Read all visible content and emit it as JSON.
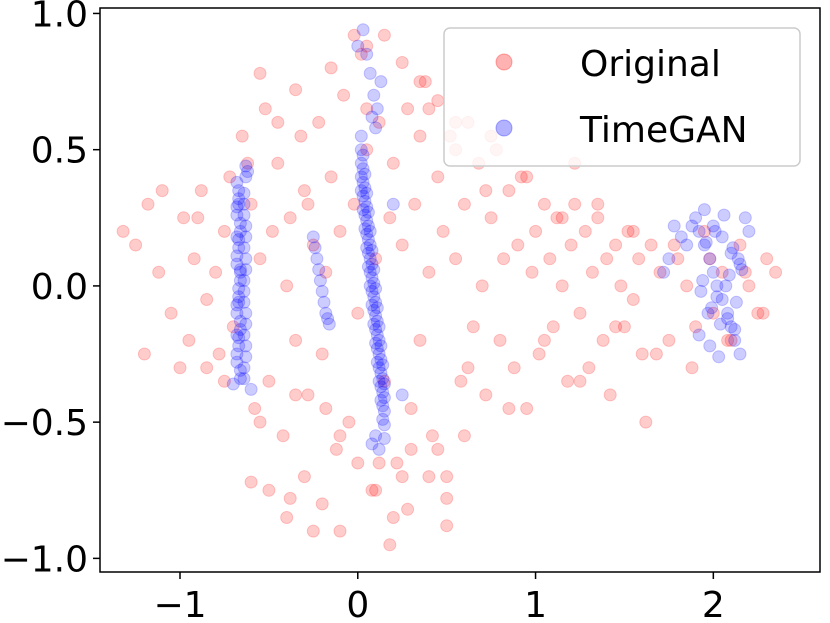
{
  "chart_data": {
    "type": "scatter",
    "title": "",
    "xlabel": "",
    "ylabel": "",
    "xlim": [
      -1.45,
      2.6
    ],
    "ylim": [
      -1.05,
      1.02
    ],
    "xticks": [
      -1,
      0,
      1,
      2
    ],
    "xtick_labels": [
      "−1",
      "0",
      "1",
      "2"
    ],
    "yticks": [
      1.0,
      0.5,
      0.0,
      -0.5,
      -1.0
    ],
    "ytick_labels": [
      "1.0",
      "0.5",
      "0.0",
      "−0.5",
      "−1.0"
    ],
    "grid": false,
    "legend_position": "top-right",
    "marker_alpha": 0.2,
    "series": [
      {
        "name": "Original",
        "color": "#ff0000",
        "x": [
          -1.32,
          -1.25,
          -1.18,
          -1.12,
          -1.05,
          -0.98,
          -0.95,
          -0.92,
          -0.88,
          -0.85,
          -0.8,
          -0.78,
          -0.75,
          -0.72,
          -0.7,
          -0.65,
          -0.6,
          -0.58,
          -0.55,
          -0.52,
          -0.5,
          -0.48,
          -0.45,
          -0.42,
          -0.4,
          -0.38,
          -0.35,
          -0.32,
          -0.3,
          -0.28,
          -0.25,
          -0.22,
          -0.2,
          -0.18,
          -0.15,
          -0.12,
          -0.1,
          -0.08,
          -0.05,
          -0.02,
          0.0,
          0.02,
          0.05,
          0.08,
          0.1,
          0.12,
          0.15,
          0.18,
          0.2,
          0.22,
          0.25,
          0.28,
          0.3,
          0.32,
          0.35,
          0.38,
          0.4,
          0.42,
          0.45,
          0.48,
          0.5,
          0.52,
          0.55,
          0.58,
          0.6,
          0.62,
          0.65,
          0.68,
          0.7,
          0.72,
          0.75,
          0.78,
          0.8,
          0.82,
          0.85,
          0.88,
          0.9,
          0.92,
          0.95,
          0.98,
          1.0,
          1.02,
          1.05,
          1.08,
          1.1,
          1.12,
          1.15,
          1.18,
          1.2,
          1.22,
          1.25,
          1.28,
          1.3,
          1.32,
          1.35,
          1.38,
          1.4,
          1.42,
          1.45,
          1.48,
          1.5,
          1.52,
          1.55,
          1.58,
          1.6,
          1.65,
          1.7,
          1.75,
          1.8,
          1.85,
          1.9,
          1.95,
          2.0,
          2.05,
          2.1,
          2.15,
          2.2,
          2.25,
          2.3,
          2.35,
          -1.2,
          -1.1,
          -1.0,
          -0.9,
          -0.85,
          -0.75,
          -0.62,
          -0.55,
          -0.45,
          -0.35,
          -0.28,
          -0.18,
          -0.1,
          0.05,
          0.12,
          0.25,
          0.35,
          0.45,
          0.55,
          0.62,
          0.72,
          0.85,
          0.95,
          1.05,
          1.15,
          1.25,
          1.35,
          1.45,
          1.55,
          1.68,
          1.78,
          1.88,
          1.98,
          2.08,
          2.18,
          2.28,
          -0.5,
          -0.4,
          -0.3,
          -0.2,
          -0.1,
          0.0,
          0.1,
          0.2,
          0.3,
          0.4,
          0.5,
          0.6,
          -0.55,
          -0.35,
          -0.15,
          0.05,
          0.25,
          0.45,
          0.15,
          0.28,
          0.4,
          -0.02,
          -0.38,
          0.5,
          0.35,
          0.55,
          0.75,
          -0.6,
          -0.25,
          0.18,
          1.62,
          1.22
        ],
        "y": [
          0.2,
          0.15,
          0.3,
          0.05,
          -0.1,
          0.25,
          -0.2,
          0.1,
          0.35,
          -0.3,
          0.05,
          -0.25,
          0.2,
          0.4,
          -0.15,
          0.55,
          0.3,
          -0.45,
          0.1,
          0.65,
          -0.35,
          0.2,
          0.45,
          -0.55,
          0.0,
          0.25,
          -0.2,
          0.55,
          0.35,
          -0.4,
          0.15,
          0.6,
          -0.25,
          0.05,
          0.4,
          -0.6,
          0.2,
          0.7,
          -0.5,
          0.3,
          -0.1,
          0.85,
          0.5,
          -0.75,
          0.1,
          0.6,
          -0.35,
          0.25,
          0.45,
          -0.65,
          0.15,
          0.65,
          -0.45,
          0.3,
          -0.2,
          0.75,
          0.05,
          -0.55,
          0.4,
          0.2,
          -0.7,
          0.55,
          0.1,
          -0.35,
          0.3,
          0.6,
          -0.15,
          0.45,
          0.0,
          -0.4,
          0.25,
          0.5,
          -0.2,
          0.1,
          0.35,
          -0.3,
          0.15,
          0.4,
          -0.45,
          0.05,
          0.2,
          -0.25,
          0.3,
          0.1,
          -0.15,
          0.25,
          0.0,
          -0.35,
          0.15,
          0.3,
          -0.1,
          0.2,
          -0.3,
          0.05,
          0.25,
          -0.2,
          0.1,
          -0.4,
          0.15,
          0.0,
          -0.15,
          0.2,
          -0.05,
          0.1,
          -0.25,
          0.15,
          0.05,
          -0.2,
          0.1,
          0.0,
          -0.15,
          0.2,
          -0.1,
          0.05,
          -0.2,
          0.15,
          0.0,
          -0.1,
          0.1,
          0.05,
          -0.25,
          0.35,
          -0.3,
          0.25,
          -0.05,
          -0.35,
          0.45,
          -0.5,
          0.6,
          -0.4,
          0.3,
          -0.45,
          -0.55,
          0.65,
          -0.65,
          -0.7,
          0.55,
          -0.6,
          0.5,
          -0.3,
          0.35,
          -0.45,
          0.4,
          -0.2,
          0.25,
          -0.35,
          0.3,
          -0.15,
          0.2,
          -0.25,
          0.15,
          -0.3,
          0.1,
          -0.2,
          0.05,
          -0.1,
          -0.75,
          -0.85,
          -0.7,
          -0.8,
          -0.9,
          -0.65,
          -0.75,
          -0.85,
          -0.6,
          -0.7,
          -0.78,
          -0.55,
          0.78,
          0.72,
          0.8,
          0.88,
          0.82,
          0.68,
          0.92,
          -0.82,
          0.65,
          0.92,
          -0.78,
          -0.88,
          0.75,
          0.6,
          0.55,
          -0.72,
          -0.9,
          -0.95,
          -0.5,
          0.45
        ]
      },
      {
        "name": "TimeGAN",
        "color": "#0000ff",
        "x": [
          -0.68,
          -0.67,
          -0.68,
          -0.66,
          -0.67,
          -0.68,
          -0.66,
          -0.67,
          -0.68,
          -0.66,
          -0.67,
          -0.68,
          -0.66,
          -0.67,
          -0.68,
          -0.66,
          -0.67,
          -0.68,
          -0.66,
          -0.67,
          -0.68,
          -0.66,
          -0.67,
          -0.68,
          -0.66,
          -0.67,
          -0.68,
          -0.66,
          -0.67,
          -0.68,
          -0.64,
          -0.63,
          -0.64,
          -0.63,
          -0.64,
          -0.63,
          -0.64,
          -0.63,
          -0.64,
          -0.63,
          -0.64,
          -0.63,
          -0.64,
          -0.63,
          -0.64,
          -0.63,
          -0.64,
          -0.63,
          -0.64,
          -0.63,
          -0.25,
          -0.24,
          -0.23,
          -0.22,
          -0.21,
          -0.2,
          -0.19,
          -0.18,
          -0.17,
          -0.16,
          0.02,
          0.03,
          0.04,
          0.05,
          0.06,
          0.07,
          0.08,
          0.09,
          0.1,
          0.11,
          0.12,
          0.13,
          0.14,
          0.15,
          0.02,
          0.03,
          0.04,
          0.05,
          0.06,
          0.07,
          0.08,
          0.09,
          0.1,
          0.11,
          0.12,
          0.13,
          0.14,
          0.15,
          0.02,
          0.03,
          0.04,
          0.05,
          0.06,
          0.07,
          0.08,
          0.09,
          0.1,
          0.11,
          0.12,
          0.13,
          0.14,
          0.15,
          0.02,
          0.03,
          0.04,
          0.05,
          0.06,
          0.07,
          0.08,
          0.09,
          0.1,
          0.11,
          0.12,
          0.13,
          0.14,
          0.15,
          0.02,
          0.03,
          0.04,
          0.05,
          0.06,
          0.07,
          0.08,
          0.09,
          0.1,
          0.11,
          0.12,
          0.13,
          0.14,
          0.15,
          0.03,
          0.05,
          0.07,
          0.09,
          0.11,
          0.13,
          0.08,
          0.1,
          0.12,
          1.9,
          1.92,
          1.95,
          1.98,
          2.0,
          2.02,
          2.05,
          2.08,
          2.1,
          2.12,
          2.15,
          1.95,
          2.0,
          2.05,
          2.1,
          2.15,
          1.92,
          1.98,
          2.03,
          2.08,
          2.13,
          1.94,
          1.99,
          2.04,
          2.09,
          2.14,
          1.96,
          2.01,
          2.06,
          2.11,
          2.16,
          1.93,
          1.97,
          2.02,
          2.07,
          2.12,
          1.78,
          1.82,
          1.85,
          1.88,
          2.18,
          2.2,
          -0.62,
          -0.6,
          0.08,
          0.1,
          0.2,
          0.25,
          1.75,
          1.72,
          -0.7,
          0.0
        ],
        "y": [
          0.38,
          0.32,
          0.26,
          0.2,
          0.14,
          0.08,
          0.02,
          -0.04,
          -0.1,
          -0.16,
          -0.22,
          -0.28,
          -0.34,
          0.35,
          0.29,
          0.23,
          0.17,
          0.11,
          0.05,
          -0.01,
          -0.07,
          -0.13,
          -0.19,
          -0.25,
          -0.31,
          0.3,
          0.18,
          0.06,
          -0.06,
          -0.18,
          0.3,
          0.22,
          0.14,
          0.06,
          -0.02,
          -0.1,
          -0.18,
          -0.26,
          -0.34,
          0.4,
          0.26,
          0.1,
          -0.06,
          -0.22,
          0.34,
          0.18,
          0.02,
          -0.14,
          -0.3,
          0.44,
          0.18,
          0.14,
          0.1,
          0.06,
          0.02,
          -0.02,
          -0.06,
          -0.1,
          -0.12,
          -0.14,
          0.55,
          0.48,
          0.41,
          0.34,
          0.27,
          0.2,
          0.13,
          0.06,
          -0.01,
          -0.08,
          -0.15,
          -0.22,
          -0.29,
          -0.36,
          0.5,
          0.43,
          0.36,
          0.29,
          0.22,
          0.15,
          0.08,
          0.01,
          -0.06,
          -0.13,
          -0.2,
          -0.27,
          -0.34,
          -0.41,
          0.45,
          0.38,
          0.31,
          0.24,
          0.17,
          0.1,
          0.03,
          -0.04,
          -0.11,
          -0.18,
          -0.25,
          -0.32,
          -0.39,
          -0.46,
          0.4,
          0.33,
          0.26,
          0.19,
          0.12,
          0.05,
          -0.02,
          -0.09,
          -0.16,
          -0.23,
          -0.3,
          -0.37,
          -0.44,
          -0.51,
          0.35,
          0.28,
          0.21,
          0.14,
          0.07,
          0.0,
          -0.07,
          -0.14,
          -0.21,
          -0.28,
          -0.35,
          -0.42,
          -0.49,
          -0.56,
          0.94,
          0.85,
          0.78,
          0.7,
          0.65,
          0.75,
          -0.58,
          -0.55,
          -0.6,
          0.25,
          0.2,
          0.15,
          0.1,
          0.05,
          0.0,
          -0.05,
          -0.1,
          -0.15,
          -0.2,
          -0.25,
          0.28,
          0.22,
          0.18,
          0.12,
          0.08,
          -0.18,
          -0.22,
          -0.26,
          -0.12,
          -0.06,
          0.02,
          -0.08,
          -0.14,
          0.04,
          0.1,
          0.16,
          0.2,
          0.26,
          0.14,
          0.06,
          -0.02,
          -0.1,
          -0.04,
          0.0,
          -0.16,
          0.22,
          0.18,
          0.15,
          0.22,
          0.25,
          0.2,
          0.42,
          -0.38,
          0.62,
          0.58,
          0.3,
          -0.4,
          0.1,
          0.05,
          -0.36,
          0.88
        ]
      }
    ]
  }
}
